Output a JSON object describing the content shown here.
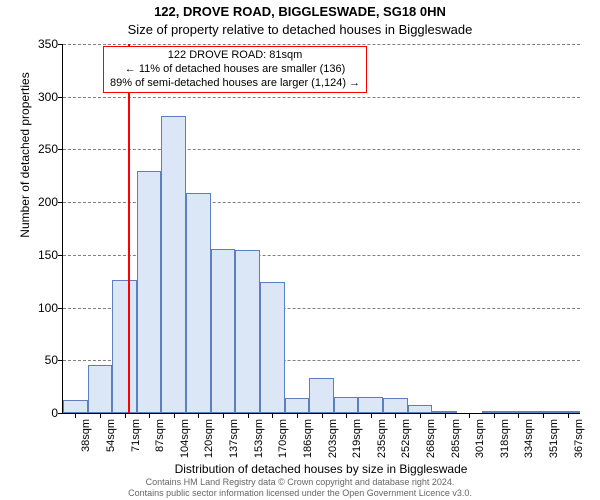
{
  "title_line1": "122, DROVE ROAD, BIGGLESWADE, SG18 0HN",
  "title_line2": "Size of property relative to detached houses in Biggleswade",
  "title1_fontsize": 13,
  "title2_fontsize": 13,
  "y_axis": {
    "label": "Number of detached properties",
    "fontsize": 12,
    "ticks": [
      0,
      50,
      100,
      150,
      200,
      250,
      300,
      350
    ],
    "max": 350,
    "tick_fontsize": 12
  },
  "x_axis": {
    "label": "Distribution of detached houses by size in Biggleswade",
    "fontsize": 12,
    "tick_fontsize": 11,
    "tick_labels": [
      "38sqm",
      "54sqm",
      "71sqm",
      "87sqm",
      "104sqm",
      "120sqm",
      "137sqm",
      "153sqm",
      "170sqm",
      "186sqm",
      "203sqm",
      "219sqm",
      "235sqm",
      "252sqm",
      "268sqm",
      "285sqm",
      "301sqm",
      "318sqm",
      "334sqm",
      "351sqm",
      "367sqm"
    ]
  },
  "histogram": {
    "type": "histogram",
    "bar_fill": "#dbe6f6",
    "bar_border": "#5b7fbf",
    "bar_border_width": 1,
    "values": [
      12,
      46,
      126,
      230,
      282,
      209,
      156,
      155,
      124,
      14,
      33,
      15,
      15,
      14,
      8,
      2,
      0,
      1,
      2,
      1,
      2
    ]
  },
  "reference_line": {
    "color": "#ff0000",
    "x_bin_index": 2.65
  },
  "callout": {
    "border_color": "#ff0000",
    "fontsize": 11,
    "line1": "122 DROVE ROAD: 81sqm",
    "line2": "← 11% of detached houses are smaller (136)",
    "line3": "89% of semi-detached houses are larger (1,124) →"
  },
  "grid": {
    "color": "#808080",
    "dash": "dashed"
  },
  "background_color": "#ffffff",
  "footer": {
    "fontsize": 9,
    "color": "#666666",
    "line1": "Contains HM Land Registry data © Crown copyright and database right 2024.",
    "line2": "Contains public sector information licensed under the Open Government Licence v3.0."
  }
}
